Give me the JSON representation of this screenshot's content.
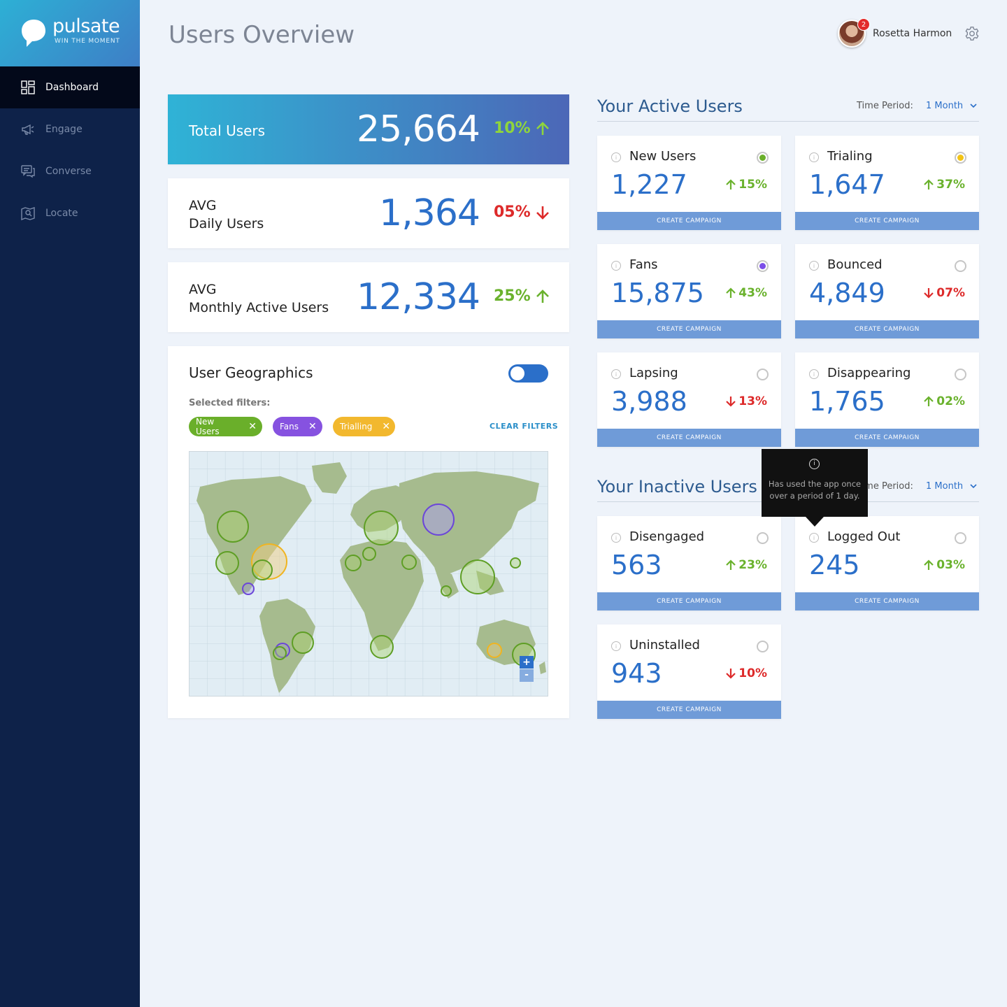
{
  "app": {
    "logo_text": "pulsate",
    "logo_tag": "WIN THE MOMENT"
  },
  "sidebar": {
    "items": [
      {
        "label": "Dashboard",
        "icon": "dashboard-icon",
        "active": true
      },
      {
        "label": "Engage",
        "icon": "megaphone-icon"
      },
      {
        "label": "Converse",
        "icon": "chat-icon"
      },
      {
        "label": "Locate",
        "icon": "map-pin-icon"
      }
    ]
  },
  "header": {
    "title": "Users Overview",
    "user_name": "Rosetta Harmon",
    "notification_count": "2"
  },
  "stats": {
    "total": {
      "label": "Total Users",
      "value": "25,664",
      "change": "10%"
    },
    "daily": {
      "label1": "AVG",
      "label2": "Daily Users",
      "value": "1,364",
      "change": "05%"
    },
    "monthly": {
      "label1": "AVG",
      "label2": "Monthly Active Users",
      "value": "12,334",
      "change": "25%"
    }
  },
  "geo": {
    "title": "User Geographics",
    "filters_label": "Selected filters:",
    "chips": [
      {
        "label": "New Users",
        "color": "#6aaf2a"
      },
      {
        "label": "Fans",
        "color": "#8652e0"
      },
      {
        "label": "Trialling",
        "color": "#f2b82e"
      }
    ],
    "clear_label": "CLEAR FILTERS",
    "zoom_in": "+",
    "zoom_out": "-"
  },
  "active": {
    "title": "Your Active Users",
    "period_label": "Time Period:",
    "period_value": "1 Month",
    "cards": [
      {
        "name": "New Users",
        "value": "1,227",
        "change": "15%",
        "dir": "up",
        "dot": "#6aaf2a"
      },
      {
        "name": "Trialing",
        "value": "1,647",
        "change": "37%",
        "dir": "up",
        "dot": "#f2c316"
      },
      {
        "name": "Fans",
        "value": "15,875",
        "change": "43%",
        "dir": "up",
        "dot": "#7b4ee8"
      },
      {
        "name": "Bounced",
        "value": "4,849",
        "change": "07%",
        "dir": "down",
        "dot": ""
      },
      {
        "name": "Lapsing",
        "value": "3,988",
        "change": "13%",
        "dir": "down",
        "dot": ""
      },
      {
        "name": "Disappearing",
        "value": "1,765",
        "change": "02%",
        "dir": "up",
        "dot": ""
      }
    ]
  },
  "inactive": {
    "title": "Your Inactive Users",
    "period_label": "Time Period:",
    "period_value": "1 Month",
    "cards": [
      {
        "name": "Disengaged",
        "value": "563",
        "change": "23%",
        "dir": "up"
      },
      {
        "name": "Logged Out",
        "value": "245",
        "change": "03%",
        "dir": "up"
      },
      {
        "name": "Uninstalled",
        "value": "943",
        "change": "10%",
        "dir": "down"
      }
    ]
  },
  "campaign_label": "CREATE CAMPAIGN",
  "tooltip": {
    "line1": "Has used the app once",
    "line2": "over a period of 1 day."
  }
}
